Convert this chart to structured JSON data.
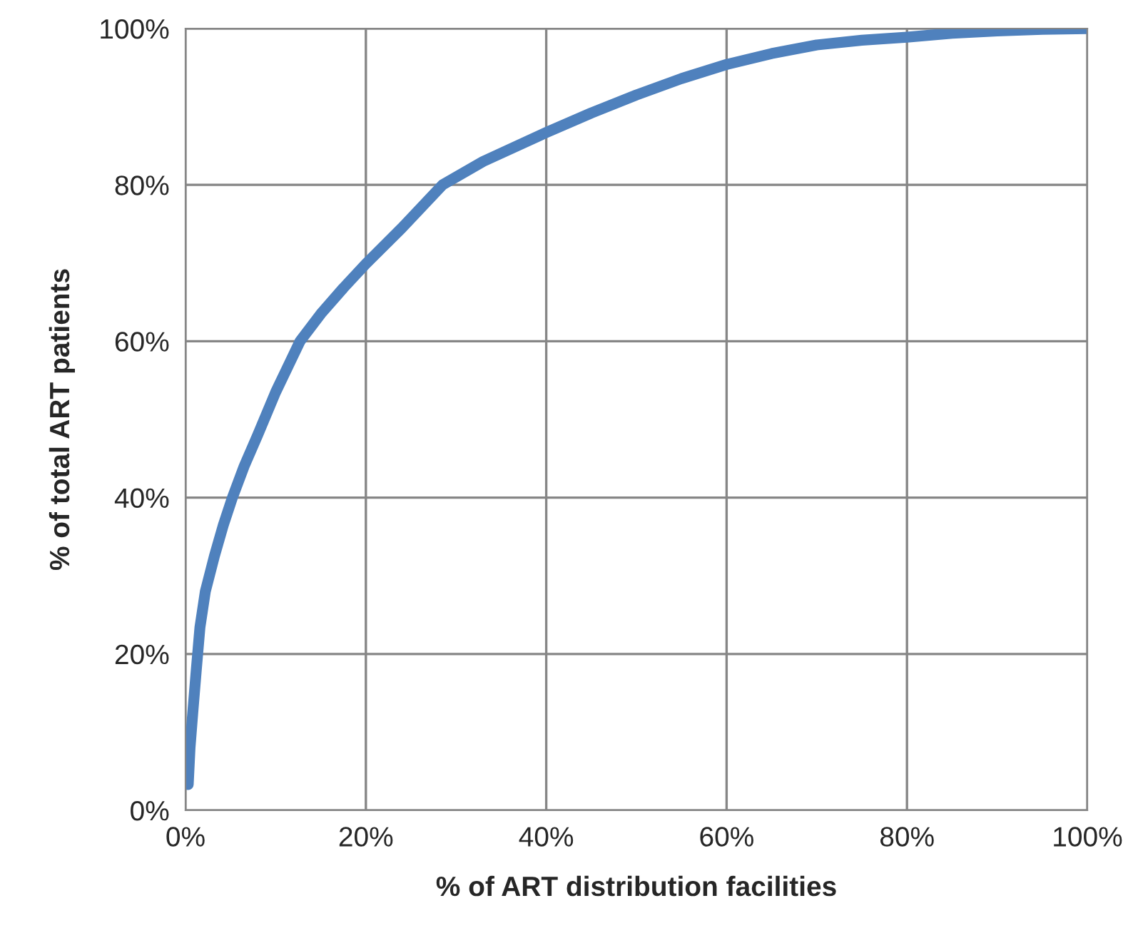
{
  "chart_data": {
    "type": "line",
    "xlabel": "% of ART distribution facilities",
    "ylabel": "% of total ART patients",
    "series": [
      {
        "color": "#4f81bd",
        "x": [
          0.3,
          0.5,
          0.8,
          1.2,
          1.6,
          2.2,
          3.2,
          4.2,
          5.2,
          6.5,
          8,
          10,
          12.7,
          15,
          17.5,
          20,
          24,
          28.5,
          33,
          40,
          45,
          50,
          55,
          60,
          65,
          70,
          75,
          80,
          85,
          90,
          95,
          100
        ],
        "values": [
          3.3,
          8,
          12.4,
          18,
          23.4,
          28,
          32.5,
          36.5,
          40,
          44,
          48,
          53.5,
          60,
          63.5,
          66.8,
          69.9,
          74.5,
          80,
          83,
          86.7,
          89.2,
          91.5,
          93.6,
          95.4,
          96.8,
          97.9,
          98.5,
          98.9,
          99.4,
          99.7,
          99.9,
          100
        ]
      }
    ],
    "xlim": [
      0,
      100
    ],
    "ylim": [
      0,
      100
    ],
    "xticks": [
      {
        "value": 0,
        "label": "0%"
      },
      {
        "value": 20,
        "label": "20%"
      },
      {
        "value": 40,
        "label": "40%"
      },
      {
        "value": 60,
        "label": "60%"
      },
      {
        "value": 80,
        "label": "80%"
      },
      {
        "value": 100,
        "label": "100%"
      }
    ],
    "yticks": [
      {
        "value": 0,
        "label": "0%"
      },
      {
        "value": 20,
        "label": "20%"
      },
      {
        "value": 40,
        "label": "40%"
      },
      {
        "value": 60,
        "label": "60%"
      },
      {
        "value": 80,
        "label": "80%"
      },
      {
        "value": 100,
        "label": "100%"
      }
    ],
    "grid": true,
    "line_style": "solid"
  }
}
